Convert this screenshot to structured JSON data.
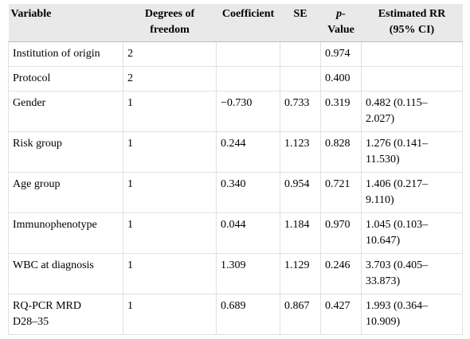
{
  "table": {
    "headers": [
      {
        "line1": "Variable",
        "line2": ""
      },
      {
        "line1": "Degrees of",
        "line2": "freedom"
      },
      {
        "line1": "Coefficient",
        "line2": ""
      },
      {
        "line1": "SE",
        "line2": ""
      },
      {
        "line1": "p-",
        "line2": "Value"
      },
      {
        "line1": "Estimated RR",
        "line2": "(95% CI)"
      }
    ],
    "rows": [
      {
        "variable": "Institution of origin",
        "df": "2",
        "coefficient": "",
        "se": "",
        "p": "0.974",
        "rr1": "",
        "rr2": ""
      },
      {
        "variable": "Protocol",
        "df": "2",
        "coefficient": "",
        "se": "",
        "p": "0.400",
        "rr1": "",
        "rr2": ""
      },
      {
        "variable": "Gender",
        "df": "1",
        "coefficient": "−0.730",
        "se": "0.733",
        "p": "0.319",
        "rr1": "0.482 (0.115–",
        "rr2": "2.027)"
      },
      {
        "variable": "Risk group",
        "df": "1",
        "coefficient": "0.244",
        "se": "1.123",
        "p": "0.828",
        "rr1": "1.276 (0.141–",
        "rr2": "11.530)"
      },
      {
        "variable": "Age group",
        "df": "1",
        "coefficient": "0.340",
        "se": "0.954",
        "p": "0.721",
        "rr1": "1.406 (0.217–",
        "rr2": "9.110)"
      },
      {
        "variable": "Immunophenotype",
        "df": "1",
        "coefficient": "0.044",
        "se": "1.184",
        "p": "0.970",
        "rr1": "1.045 (0.103–",
        "rr2": "10.647)"
      },
      {
        "variable": "WBC at diagnosis",
        "df": "1",
        "coefficient": "1.309",
        "se": "1.129",
        "p": "0.246",
        "rr1": "3.703 (0.405–",
        "rr2": "33.873)"
      },
      {
        "variable": "RQ-PCR MRD",
        "variable2": "D28–35",
        "df": "1",
        "coefficient": "0.689",
        "se": "0.867",
        "p": "0.427",
        "rr1": "1.993 (0.364–",
        "rr2": "10.909)"
      }
    ]
  }
}
